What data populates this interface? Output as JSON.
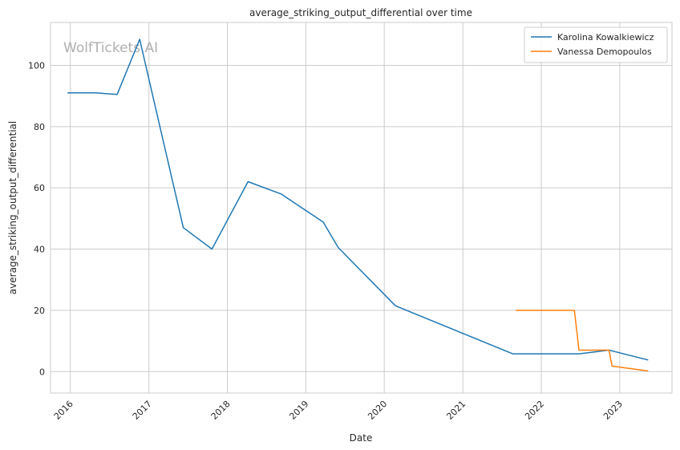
{
  "watermark": "WolfTickets.AI",
  "chart_data": {
    "type": "line",
    "title": "average_striking_output_differential over time",
    "xlabel": "Date",
    "ylabel": "average_striking_output_differential",
    "x_ticks": [
      "2016",
      "2017",
      "2018",
      "2019",
      "2020",
      "2021",
      "2022",
      "2023"
    ],
    "y_ticks": [
      0,
      20,
      40,
      60,
      80,
      100
    ],
    "xlim": [
      "2015-10-01",
      "2023-09-01"
    ],
    "ylim": [
      -7,
      114
    ],
    "grid": true,
    "legend_position": "top-right",
    "series": [
      {
        "name": "Karolina Kowalkiewicz",
        "color": "#1f77b4",
        "points": [
          {
            "x": "2015-12-19",
            "y": 91
          },
          {
            "x": "2016-04-30",
            "y": 91
          },
          {
            "x": "2016-08-06",
            "y": 90.5
          },
          {
            "x": "2016-11-19",
            "y": 108.5
          },
          {
            "x": "2017-06-10",
            "y": 47
          },
          {
            "x": "2017-10-21",
            "y": 40
          },
          {
            "x": "2018-04-07",
            "y": 62
          },
          {
            "x": "2018-09-08",
            "y": 58
          },
          {
            "x": "2019-03-23",
            "y": 48.8
          },
          {
            "x": "2019-06-01",
            "y": 40.5
          },
          {
            "x": "2020-02-22",
            "y": 21.5
          },
          {
            "x": "2021-08-21",
            "y": 5.8
          },
          {
            "x": "2022-06-25",
            "y": 5.8
          },
          {
            "x": "2022-11-12",
            "y": 7
          },
          {
            "x": "2023-05-13",
            "y": 3.8
          }
        ]
      },
      {
        "name": "Vanessa Demopoulos",
        "color": "#ff7f0e",
        "points": [
          {
            "x": "2021-09-04",
            "y": 20
          },
          {
            "x": "2022-06-04",
            "y": 20
          },
          {
            "x": "2022-06-25",
            "y": 7
          },
          {
            "x": "2022-11-12",
            "y": 7
          },
          {
            "x": "2022-11-26",
            "y": 1.8
          },
          {
            "x": "2023-05-13",
            "y": 0.2
          }
        ]
      }
    ]
  }
}
